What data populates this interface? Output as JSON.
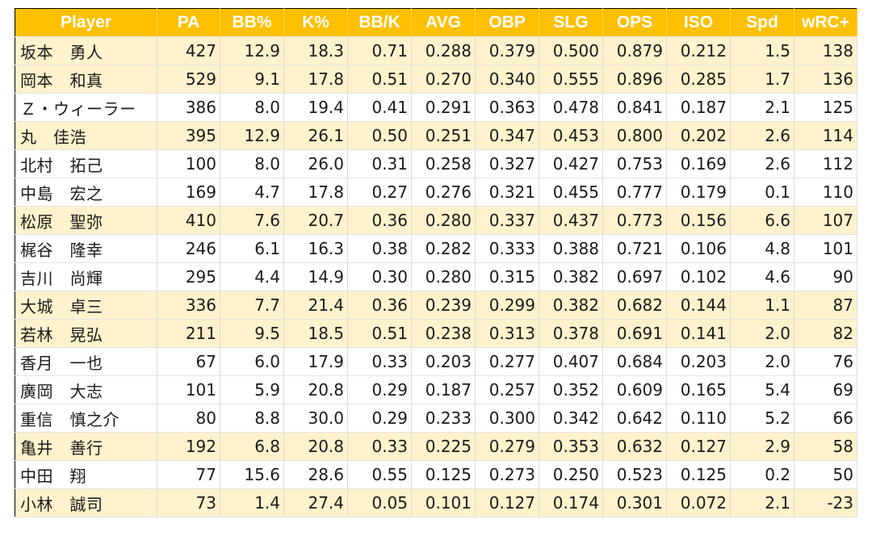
{
  "table": {
    "headers": [
      "Player",
      "PA",
      "BB%",
      "K%",
      "BB/K",
      "AVG",
      "OBP",
      "SLG",
      "OPS",
      "ISO",
      "Spd",
      "wRC+"
    ],
    "rows": [
      {
        "highlight": true,
        "cells": [
          "坂本　勇人",
          "427",
          "12.9",
          "18.3",
          "0.71",
          "0.288",
          "0.379",
          "0.500",
          "0.879",
          "0.212",
          "1.5",
          "138"
        ]
      },
      {
        "highlight": true,
        "cells": [
          "岡本　和真",
          "529",
          "9.1",
          "17.8",
          "0.51",
          "0.270",
          "0.340",
          "0.555",
          "0.896",
          "0.285",
          "1.7",
          "136"
        ]
      },
      {
        "highlight": false,
        "cells": [
          "Ｚ・ウィーラー",
          "386",
          "8.0",
          "19.4",
          "0.41",
          "0.291",
          "0.363",
          "0.478",
          "0.841",
          "0.187",
          "2.1",
          "125"
        ]
      },
      {
        "highlight": true,
        "cells": [
          "丸　佳浩",
          "395",
          "12.9",
          "26.1",
          "0.50",
          "0.251",
          "0.347",
          "0.453",
          "0.800",
          "0.202",
          "2.6",
          "114"
        ]
      },
      {
        "highlight": false,
        "cells": [
          "北村　拓己",
          "100",
          "8.0",
          "26.0",
          "0.31",
          "0.258",
          "0.327",
          "0.427",
          "0.753",
          "0.169",
          "2.6",
          "112"
        ]
      },
      {
        "highlight": false,
        "cells": [
          "中島　宏之",
          "169",
          "4.7",
          "17.8",
          "0.27",
          "0.276",
          "0.321",
          "0.455",
          "0.777",
          "0.179",
          "0.1",
          "110"
        ]
      },
      {
        "highlight": true,
        "cells": [
          "松原　聖弥",
          "410",
          "7.6",
          "20.7",
          "0.36",
          "0.280",
          "0.337",
          "0.437",
          "0.773",
          "0.156",
          "6.6",
          "107"
        ]
      },
      {
        "highlight": false,
        "cells": [
          "梶谷　隆幸",
          "246",
          "6.1",
          "16.3",
          "0.38",
          "0.282",
          "0.333",
          "0.388",
          "0.721",
          "0.106",
          "4.8",
          "101"
        ]
      },
      {
        "highlight": false,
        "cells": [
          "吉川　尚輝",
          "295",
          "4.4",
          "14.9",
          "0.30",
          "0.280",
          "0.315",
          "0.382",
          "0.697",
          "0.102",
          "4.6",
          "90"
        ]
      },
      {
        "highlight": true,
        "cells": [
          "大城　卓三",
          "336",
          "7.7",
          "21.4",
          "0.36",
          "0.239",
          "0.299",
          "0.382",
          "0.682",
          "0.144",
          "1.1",
          "87"
        ]
      },
      {
        "highlight": true,
        "cells": [
          "若林　晃弘",
          "211",
          "9.5",
          "18.5",
          "0.51",
          "0.238",
          "0.313",
          "0.378",
          "0.691",
          "0.141",
          "2.0",
          "82"
        ]
      },
      {
        "highlight": false,
        "cells": [
          "香月　一也",
          "67",
          "6.0",
          "17.9",
          "0.33",
          "0.203",
          "0.277",
          "0.407",
          "0.684",
          "0.203",
          "2.0",
          "76"
        ]
      },
      {
        "highlight": false,
        "cells": [
          "廣岡　大志",
          "101",
          "5.9",
          "20.8",
          "0.29",
          "0.187",
          "0.257",
          "0.352",
          "0.609",
          "0.165",
          "5.4",
          "69"
        ]
      },
      {
        "highlight": false,
        "cells": [
          "重信　慎之介",
          "80",
          "8.8",
          "30.0",
          "0.29",
          "0.233",
          "0.300",
          "0.342",
          "0.642",
          "0.110",
          "5.2",
          "66"
        ]
      },
      {
        "highlight": true,
        "cells": [
          "亀井　善行",
          "192",
          "6.8",
          "20.8",
          "0.33",
          "0.225",
          "0.279",
          "0.353",
          "0.632",
          "0.127",
          "2.9",
          "58"
        ]
      },
      {
        "highlight": false,
        "cells": [
          "中田　翔",
          "77",
          "15.6",
          "28.6",
          "0.55",
          "0.125",
          "0.273",
          "0.250",
          "0.523",
          "0.125",
          "0.2",
          "50"
        ]
      },
      {
        "highlight": true,
        "cells": [
          "小林　誠司",
          "73",
          "1.4",
          "27.4",
          "0.05",
          "0.101",
          "0.127",
          "0.174",
          "0.301",
          "0.072",
          "2.1",
          "-23"
        ]
      }
    ]
  },
  "colors": {
    "header_bg": "#ffc000",
    "header_text": "#ffffff",
    "highlight_row": "#fff2cc",
    "plain_row": "#ffffff"
  }
}
